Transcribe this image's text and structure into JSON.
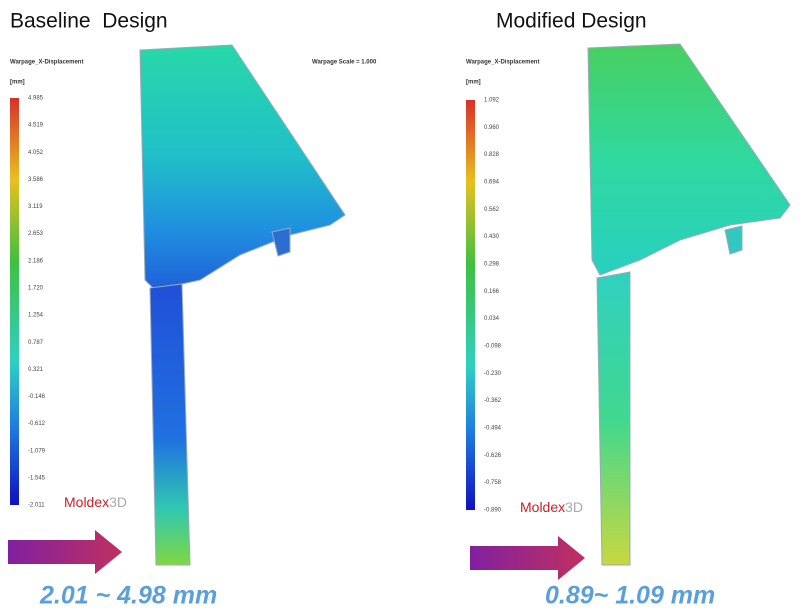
{
  "left": {
    "title": "Baseline  Design",
    "legend": {
      "title": "Warpage_X-Displacement",
      "unit": "[mm]",
      "values": [
        "4.985",
        "4.519",
        "4.052",
        "3.586",
        "3.119",
        "2.653",
        "2.186",
        "1.720",
        "1.254",
        "0.787",
        "0.321",
        "-0.146",
        "-0.612",
        "-1.079",
        "-1.545",
        "-2.011"
      ]
    },
    "scale": "Warpage Scale = 1.000",
    "logo": {
      "name": "Moldex",
      "suffix": "3D"
    },
    "caption": "2.01 ~ 4.98 mm"
  },
  "right": {
    "title": "Modified Design",
    "legend": {
      "title": "Warpage_X-Displacement",
      "unit": "[mm]",
      "values": [
        "1.092",
        "0.960",
        "0.828",
        "0.694",
        "0.562",
        "0.430",
        "0.298",
        "0.166",
        "0.034",
        "-0.098",
        "-0.230",
        "-0.362",
        "-0.494",
        "-0.626",
        "-0.758",
        "-0.890"
      ]
    },
    "logo": {
      "name": "Moldex",
      "suffix": "3D"
    },
    "caption": "0.89~ 1.09 mm"
  }
}
